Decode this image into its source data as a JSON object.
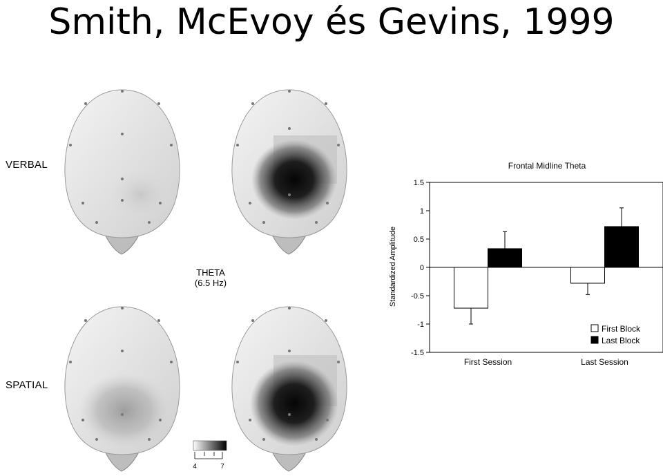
{
  "slide": {
    "title": "Smith, McEvoy és Gevins, 1999"
  },
  "topomaps": {
    "row_labels": [
      "VERBAL",
      "SPATIAL"
    ],
    "center_label": [
      "THETA",
      "(6.5 Hz)"
    ],
    "scale": {
      "min_label": "4",
      "max_label": "7"
    }
  },
  "chart_data": {
    "type": "bar",
    "title": "Frontal Midline Theta",
    "ylabel": "Standardized Amplitude",
    "xlabel": "",
    "categories": [
      "First Session",
      "Last Session"
    ],
    "ylim": [
      -1.5,
      1.5
    ],
    "yticks": [
      1.5,
      1,
      0.5,
      0,
      -0.5,
      -1,
      -1.5
    ],
    "series": [
      {
        "name": "First Block",
        "values": [
          -0.72,
          -0.28
        ],
        "errors": [
          0.28,
          0.2
        ],
        "color": "#ffffff"
      },
      {
        "name": "Last Block",
        "values": [
          0.33,
          0.72
        ],
        "errors": [
          0.3,
          0.33
        ],
        "color": "#000000"
      }
    ],
    "legend_position": "bottom-right",
    "grid": false
  }
}
